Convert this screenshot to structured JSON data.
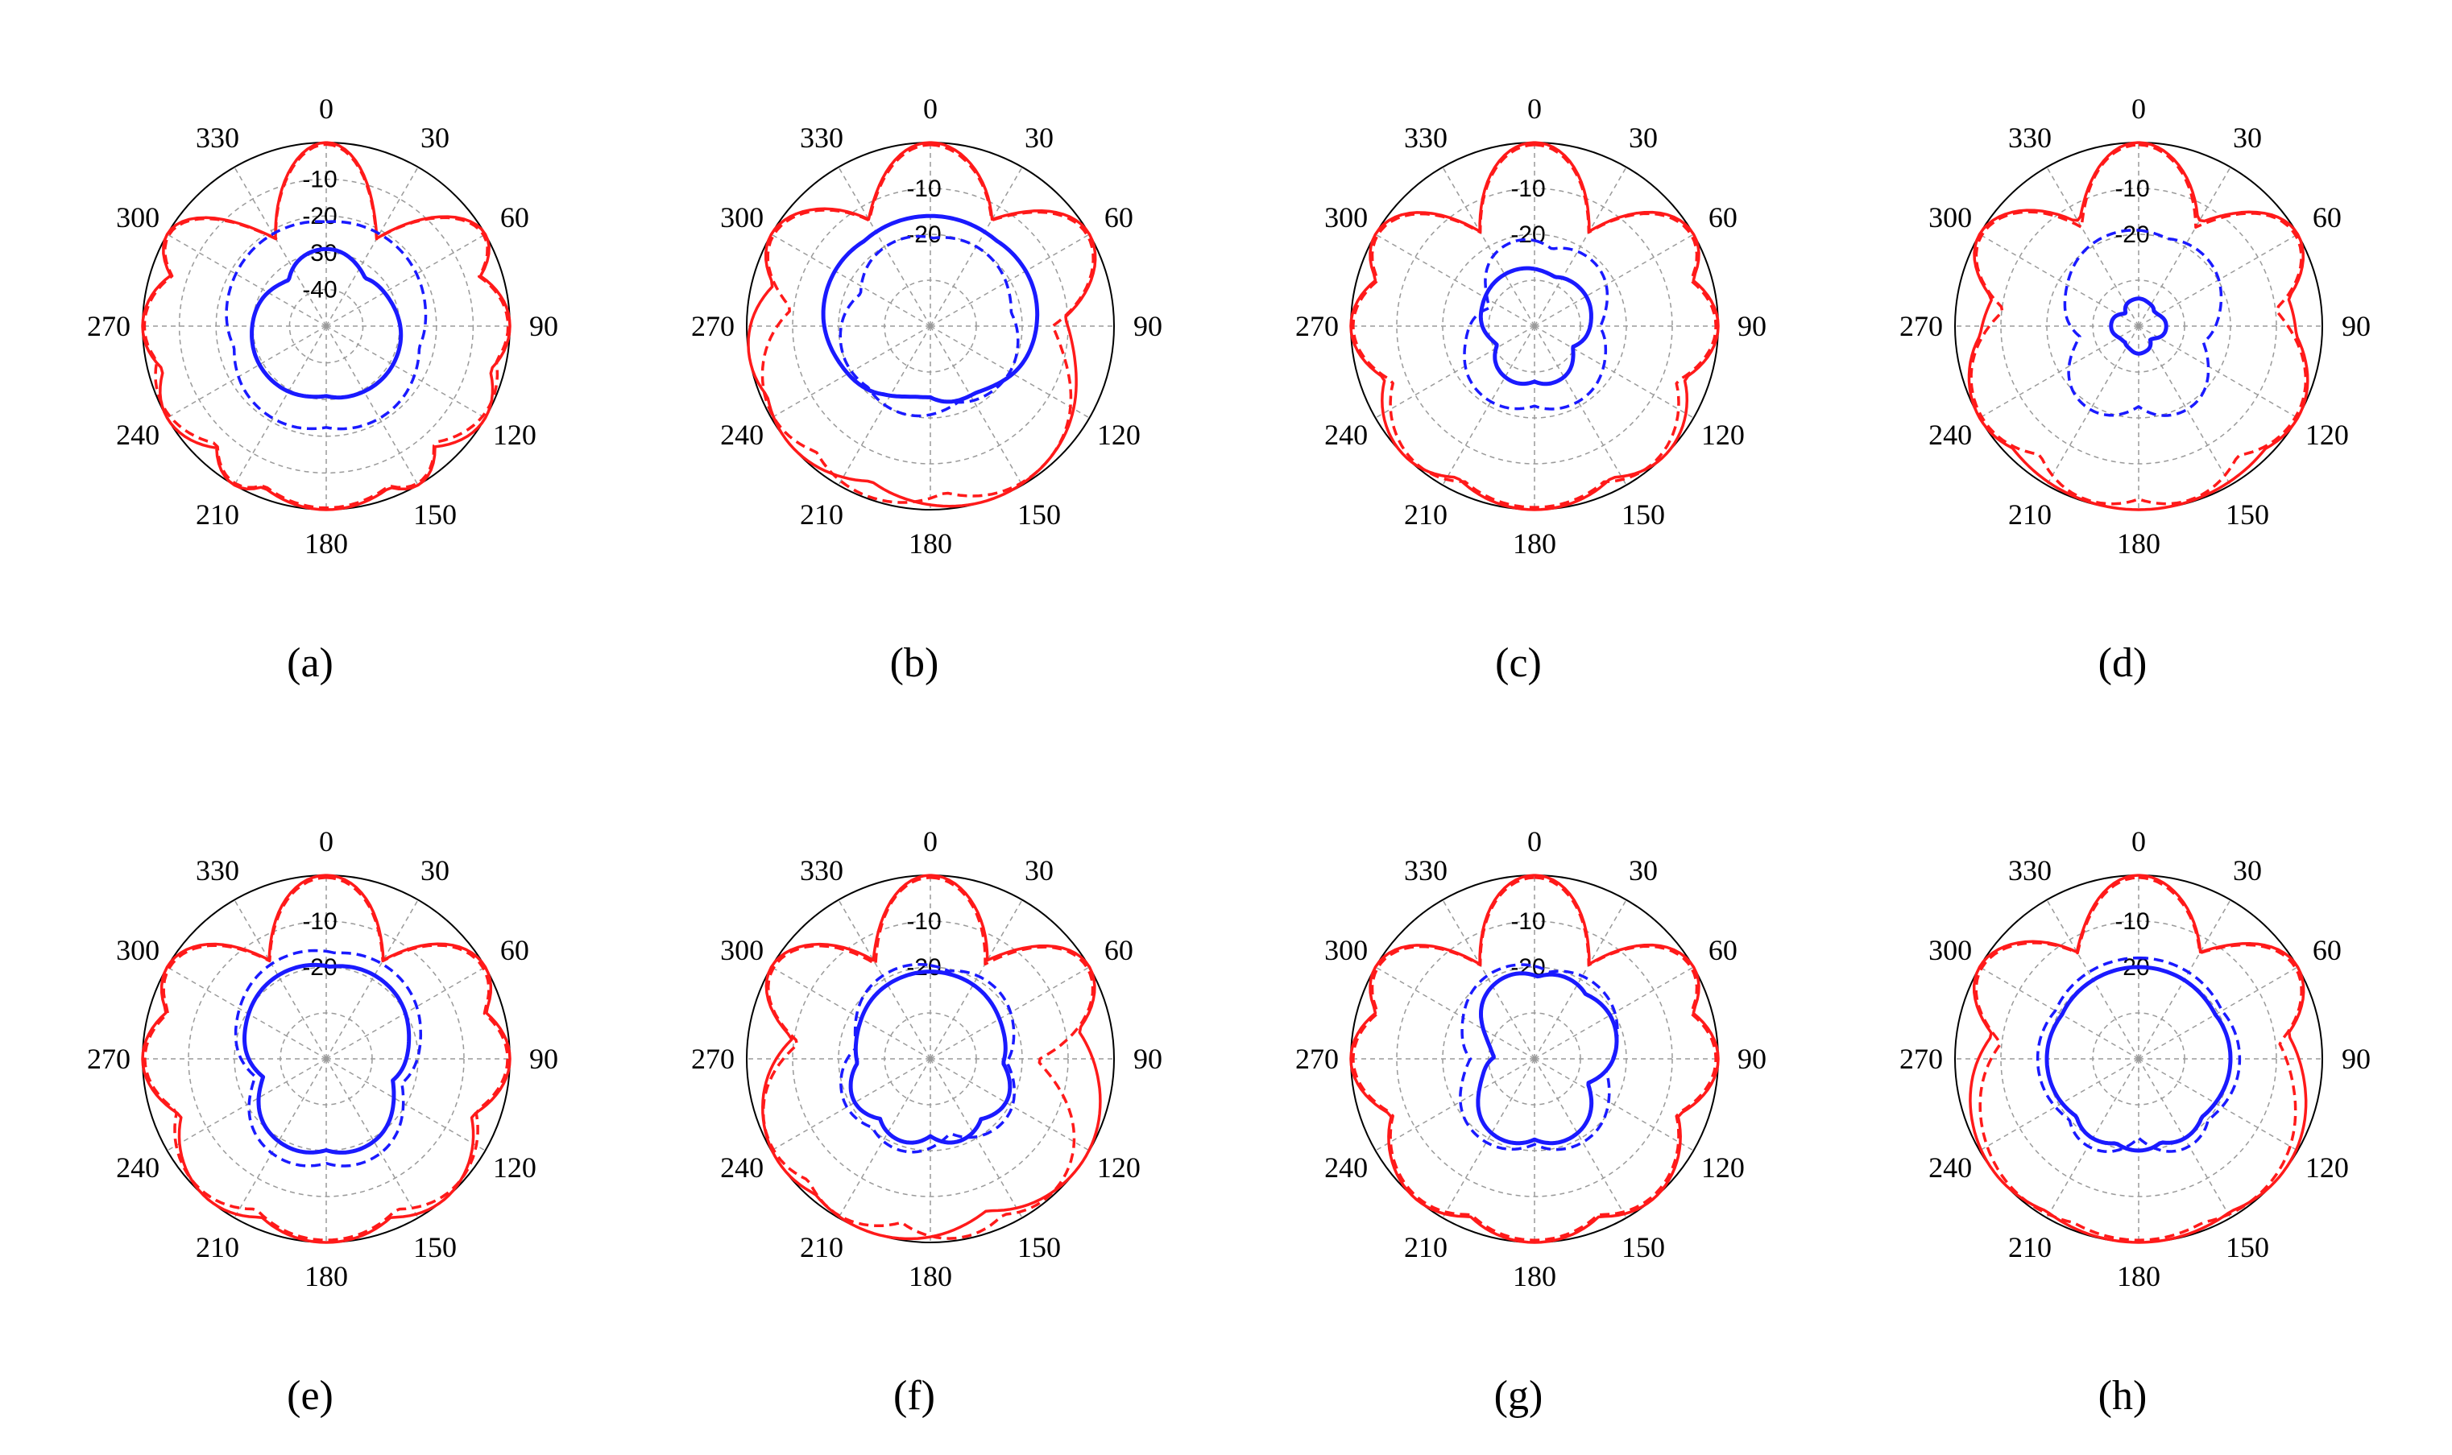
{
  "figure": {
    "colors": {
      "copol": "#ff1a1a",
      "xpol": "#1a1aff",
      "grid": "#9a9a9a",
      "axis": "#000000"
    },
    "angle_ticks": [
      "0",
      "30",
      "60",
      "90",
      "120",
      "150",
      "180",
      "210",
      "240",
      "270",
      "300",
      "330"
    ],
    "panel_labels": [
      "(a)",
      "(b)",
      "(c)",
      "(d)",
      "(e)",
      "(f)",
      "(g)",
      "(h)"
    ]
  },
  "chart_data": [
    {
      "type": "polar",
      "label": "(a)",
      "r_ticks": [
        "-10",
        "-20",
        "-30",
        "-40"
      ],
      "rlim": [
        -50,
        0
      ],
      "series": [
        {
          "style": "solid",
          "color": "red",
          "name": "",
          "lobes": [
            [
              0,
              4
            ],
            [
              60,
              4
            ],
            [
              90,
              6
            ],
            [
              120,
              6
            ],
            [
              150,
              4
            ],
            [
              180,
              10
            ],
            [
              210,
              4
            ],
            [
              240,
              6
            ],
            [
              270,
              6
            ],
            [
              300,
              4
            ]
          ],
          "floor": -34,
          "peak": 0
        },
        {
          "style": "dashed",
          "color": "red",
          "name": "",
          "lobes": [
            [
              0,
              4
            ],
            [
              60,
              4
            ],
            [
              90,
              6
            ],
            [
              115,
              7
            ],
            [
              150,
              4
            ],
            [
              180,
              10
            ],
            [
              210,
              4
            ],
            [
              245,
              7
            ],
            [
              270,
              6
            ],
            [
              300,
              4
            ]
          ],
          "floor": -34,
          "peak": -0.5
        },
        {
          "style": "solid",
          "color": "blue",
          "name": "",
          "lobes": [
            [
              0,
              10
            ],
            [
              125,
              22
            ],
            [
              235,
              22
            ]
          ],
          "floor": -46,
          "peak": -29
        },
        {
          "style": "dashed",
          "color": "blue",
          "name": "",
          "lobes": [
            [
              30,
              28
            ],
            [
              330,
              28
            ],
            [
              150,
              18
            ],
            [
              210,
              18
            ]
          ],
          "floor": -46,
          "peak": -21
        }
      ]
    },
    {
      "type": "polar",
      "label": "(b)",
      "r_ticks": [
        "-10",
        "-20"
      ],
      "rlim": [
        -40,
        0
      ],
      "series": [
        {
          "style": "solid",
          "color": "red",
          "name": "",
          "lobes": [
            [
              0,
              5
            ],
            [
              60,
              5
            ],
            [
              300,
              5
            ],
            [
              160,
              14
            ],
            [
              230,
              10
            ],
            [
              260,
              8
            ]
          ],
          "floor": -26,
          "peak": 0
        },
        {
          "style": "dashed",
          "color": "red",
          "name": "",
          "lobes": [
            [
              0,
              5
            ],
            [
              60,
              5
            ],
            [
              300,
              5
            ],
            [
              150,
              10
            ],
            [
              200,
              10
            ],
            [
              240,
              8
            ]
          ],
          "floor": -26,
          "peak": -0.5
        },
        {
          "style": "solid",
          "color": "blue",
          "name": "",
          "lobes": [
            [
              0,
              34
            ],
            [
              60,
              20
            ],
            [
              300,
              20
            ]
          ],
          "floor": -36,
          "peak": -16
        },
        {
          "style": "dashed",
          "color": "blue",
          "name": "",
          "lobes": [
            [
              340,
              14
            ],
            [
              30,
              18
            ],
            [
              120,
              14
            ],
            [
              200,
              14
            ],
            [
              250,
              14
            ]
          ],
          "floor": -36,
          "peak": -20
        }
      ]
    },
    {
      "type": "polar",
      "label": "(c)",
      "r_ticks": [
        "-10",
        "-20"
      ],
      "rlim": [
        -40,
        0
      ],
      "series": [
        {
          "style": "solid",
          "color": "red",
          "name": "",
          "lobes": [
            [
              0,
              5
            ],
            [
              60,
              5
            ],
            [
              300,
              5
            ],
            [
              90,
              6
            ],
            [
              270,
              6
            ],
            [
              180,
              12
            ],
            [
              135,
              8
            ],
            [
              225,
              8
            ]
          ],
          "floor": -30,
          "peak": 0
        },
        {
          "style": "dashed",
          "color": "red",
          "name": "",
          "lobes": [
            [
              0,
              5
            ],
            [
              60,
              5
            ],
            [
              300,
              5
            ],
            [
              90,
              6
            ],
            [
              270,
              6
            ],
            [
              180,
              12
            ],
            [
              140,
              8
            ],
            [
              220,
              8
            ]
          ],
          "floor": -30,
          "peak": -0.5
        },
        {
          "style": "solid",
          "color": "blue",
          "name": "",
          "lobes": [
            [
              330,
              20
            ],
            [
              60,
              14
            ],
            [
              160,
              10
            ],
            [
              200,
              10
            ]
          ],
          "floor": -38,
          "peak": -27
        },
        {
          "style": "dashed",
          "color": "blue",
          "name": "",
          "lobes": [
            [
              350,
              10
            ],
            [
              40,
              12
            ],
            [
              150,
              14
            ],
            [
              210,
              14
            ]
          ],
          "floor": -38,
          "peak": -21
        }
      ]
    },
    {
      "type": "polar",
      "label": "(d)",
      "r_ticks": [
        "-10",
        "-20"
      ],
      "rlim": [
        -40,
        0
      ],
      "series": [
        {
          "style": "solid",
          "color": "red",
          "name": "",
          "lobes": [
            [
              0,
              5
            ],
            [
              60,
              5
            ],
            [
              300,
              5
            ],
            [
              180,
              26
            ],
            [
              120,
              8
            ],
            [
              240,
              8
            ]
          ],
          "floor": -28,
          "peak": 0
        },
        {
          "style": "dashed",
          "color": "red",
          "name": "",
          "lobes": [
            [
              0,
              5
            ],
            [
              60,
              5
            ],
            [
              300,
              5
            ],
            [
              165,
              8
            ],
            [
              195,
              8
            ],
            [
              120,
              8
            ],
            [
              240,
              8
            ]
          ],
          "floor": -28,
          "peak": -0.5
        },
        {
          "style": "solid",
          "color": "blue",
          "name": "",
          "lobes": [
            [
              0,
              10
            ],
            [
              90,
              10
            ],
            [
              270,
              10
            ],
            [
              180,
              8
            ]
          ],
          "floor": -39,
          "peak": -34
        },
        {
          "style": "dashed",
          "color": "blue",
          "name": "",
          "lobes": [
            [
              350,
              18
            ],
            [
              40,
              14
            ],
            [
              150,
              10
            ],
            [
              210,
              10
            ]
          ],
          "floor": -39,
          "peak": -19
        }
      ]
    },
    {
      "type": "polar",
      "label": "(e)",
      "r_ticks": [
        "-10",
        "-20"
      ],
      "rlim": [
        -40,
        0
      ],
      "series": [
        {
          "style": "solid",
          "color": "red",
          "name": "",
          "lobes": [
            [
              0,
              5
            ],
            [
              60,
              5
            ],
            [
              300,
              5
            ],
            [
              90,
              6
            ],
            [
              270,
              6
            ],
            [
              140,
              8
            ],
            [
              220,
              8
            ],
            [
              180,
              10
            ]
          ],
          "floor": -28,
          "peak": 0
        },
        {
          "style": "dashed",
          "color": "red",
          "name": "",
          "lobes": [
            [
              0,
              5
            ],
            [
              60,
              5
            ],
            [
              300,
              5
            ],
            [
              90,
              6
            ],
            [
              270,
              6
            ],
            [
              135,
              8
            ],
            [
              225,
              8
            ],
            [
              180,
              10
            ]
          ],
          "floor": -28,
          "peak": -0.5
        },
        {
          "style": "solid",
          "color": "blue",
          "name": "",
          "lobes": [
            [
              335,
              18
            ],
            [
              30,
              18
            ],
            [
              160,
              12
            ],
            [
              200,
              12
            ]
          ],
          "floor": -38,
          "peak": -19
        },
        {
          "style": "dashed",
          "color": "blue",
          "name": "",
          "lobes": [
            [
              340,
              18
            ],
            [
              30,
              18
            ],
            [
              160,
              12
            ],
            [
              200,
              12
            ]
          ],
          "floor": -38,
          "peak": -16
        }
      ]
    },
    {
      "type": "polar",
      "label": "(f)",
      "r_ticks": [
        "-10",
        "-20"
      ],
      "rlim": [
        -40,
        0
      ],
      "series": [
        {
          "style": "solid",
          "color": "red",
          "name": "",
          "lobes": [
            [
              0,
              5
            ],
            [
              60,
              5
            ],
            [
              300,
              5
            ],
            [
              125,
              12
            ],
            [
              200,
              14
            ],
            [
              235,
              10
            ]
          ],
          "floor": -30,
          "peak": 0
        },
        {
          "style": "dashed",
          "color": "red",
          "name": "",
          "lobes": [
            [
              0,
              5
            ],
            [
              60,
              5
            ],
            [
              300,
              5
            ],
            [
              140,
              8
            ],
            [
              170,
              8
            ],
            [
              210,
              8
            ],
            [
              240,
              8
            ]
          ],
          "floor": -30,
          "peak": -0.5
        },
        {
          "style": "solid",
          "color": "blue",
          "name": "",
          "lobes": [
            [
              0,
              28
            ],
            [
              120,
              8
            ],
            [
              160,
              8
            ],
            [
              200,
              8
            ],
            [
              240,
              8
            ]
          ],
          "floor": -38,
          "peak": -21
        },
        {
          "style": "dashed",
          "color": "blue",
          "name": "",
          "lobes": [
            [
              340,
              16
            ],
            [
              40,
              14
            ],
            [
              130,
              10
            ],
            [
              200,
              10
            ],
            [
              240,
              10
            ]
          ],
          "floor": -38,
          "peak": -19
        }
      ]
    },
    {
      "type": "polar",
      "label": "(g)",
      "r_ticks": [
        "-10",
        "-20"
      ],
      "rlim": [
        -40,
        0
      ],
      "series": [
        {
          "style": "solid",
          "color": "red",
          "name": "",
          "lobes": [
            [
              0,
              5
            ],
            [
              60,
              5
            ],
            [
              300,
              5
            ],
            [
              90,
              6
            ],
            [
              270,
              6
            ],
            [
              140,
              8
            ],
            [
              220,
              8
            ],
            [
              180,
              10
            ]
          ],
          "floor": -30,
          "peak": 0
        },
        {
          "style": "dashed",
          "color": "red",
          "name": "",
          "lobes": [
            [
              0,
              5
            ],
            [
              60,
              5
            ],
            [
              300,
              5
            ],
            [
              90,
              6
            ],
            [
              270,
              6
            ],
            [
              140,
              8
            ],
            [
              220,
              8
            ],
            [
              180,
              10
            ]
          ],
          "floor": -30,
          "peak": -0.5
        },
        {
          "style": "solid",
          "color": "blue",
          "name": "",
          "lobes": [
            [
              345,
              10
            ],
            [
              20,
              10
            ],
            [
              60,
              12
            ],
            [
              160,
              10
            ],
            [
              200,
              10
            ]
          ],
          "floor": -38,
          "peak": -21
        },
        {
          "style": "dashed",
          "color": "blue",
          "name": "",
          "lobes": [
            [
              340,
              14
            ],
            [
              40,
              14
            ],
            [
              150,
              12
            ],
            [
              210,
              12
            ]
          ],
          "floor": -38,
          "peak": -19
        }
      ]
    },
    {
      "type": "polar",
      "label": "(h)",
      "r_ticks": [
        "-10",
        "-20"
      ],
      "rlim": [
        -40,
        0
      ],
      "series": [
        {
          "style": "solid",
          "color": "red",
          "name": "",
          "lobes": [
            [
              0,
              5
            ],
            [
              60,
              5
            ],
            [
              300,
              5
            ],
            [
              130,
              12
            ],
            [
              180,
              20
            ],
            [
              230,
              12
            ]
          ],
          "floor": -26,
          "peak": 0
        },
        {
          "style": "dashed",
          "color": "red",
          "name": "",
          "lobes": [
            [
              0,
              5
            ],
            [
              60,
              5
            ],
            [
              300,
              5
            ],
            [
              140,
              12
            ],
            [
              180,
              14
            ],
            [
              220,
              12
            ]
          ],
          "floor": -26,
          "peak": -0.5
        },
        {
          "style": "solid",
          "color": "blue",
          "name": "",
          "lobes": [
            [
              0,
              40
            ],
            [
              90,
              20
            ],
            [
              270,
              20
            ],
            [
              150,
              8
            ],
            [
              180,
              8
            ],
            [
              210,
              8
            ]
          ],
          "floor": -36,
          "peak": -20
        },
        {
          "style": "dashed",
          "color": "blue",
          "name": "",
          "lobes": [
            [
              0,
              36
            ],
            [
              90,
              18
            ],
            [
              270,
              18
            ],
            [
              150,
              8
            ],
            [
              210,
              8
            ]
          ],
          "floor": -36,
          "peak": -18
        }
      ]
    }
  ]
}
